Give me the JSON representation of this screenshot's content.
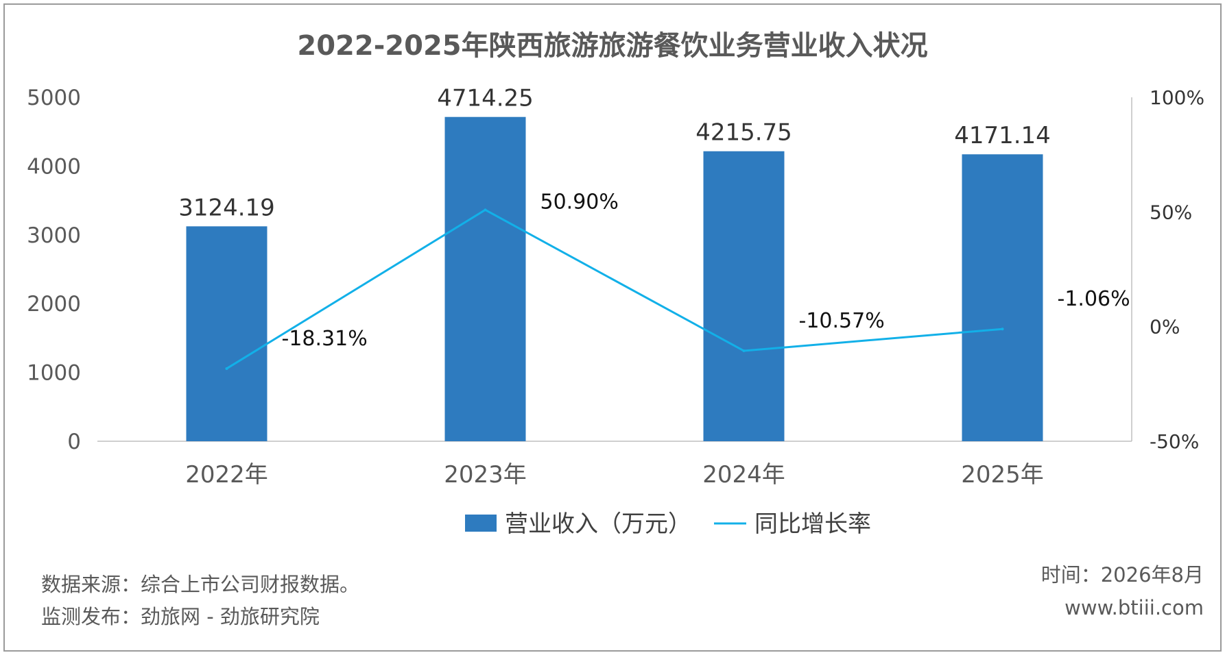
{
  "chart_data": {
    "type": "bar",
    "title": "2022-2025年陕西旅游旅游餐饮业务营业收入状况",
    "categories": [
      "2022年",
      "2023年",
      "2024年",
      "2025年"
    ],
    "series": [
      {
        "name": "营业收入（万元）",
        "type": "bar",
        "axis": "left",
        "color": "#2E7BBF",
        "values": [
          3124.19,
          4714.25,
          4215.75,
          4171.14
        ],
        "labels": [
          "3124.19",
          "4714.25",
          "4215.75",
          "4171.14"
        ]
      },
      {
        "name": "同比增长率",
        "type": "line",
        "axis": "right",
        "color": "#12B0E8",
        "values": [
          -18.31,
          50.9,
          -10.57,
          -1.06
        ],
        "labels": [
          "-18.31%",
          "50.90%",
          "-10.57%",
          "-1.06%"
        ]
      }
    ],
    "y_left": {
      "min": 0,
      "max": 5000,
      "ticks": [
        "0",
        "1000",
        "2000",
        "3000",
        "4000",
        "5000"
      ]
    },
    "y_right": {
      "min": -50,
      "max": 100,
      "ticks": [
        "-50%",
        "0%",
        "50%",
        "100%"
      ]
    },
    "grid": false,
    "legend": "bottom-center"
  },
  "footer": {
    "source": "数据来源：综合上市公司财报数据。",
    "publisher": "监测发布：劲旅网 - 劲旅研究院",
    "time": "时间：2026年8月",
    "website": "www.btiii.com"
  }
}
